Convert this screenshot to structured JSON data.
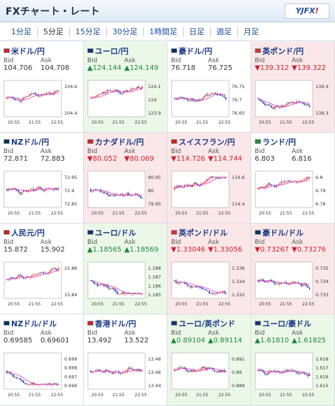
{
  "header": {
    "title": "FXチャート・レート",
    "logo_text": "YJFX!"
  },
  "tabs": [
    {
      "label": "1分足"
    },
    {
      "label": "5分足",
      "active": true
    },
    {
      "label": "15分足"
    },
    {
      "label": "30分足"
    },
    {
      "label": "1時間足"
    },
    {
      "label": "日足"
    },
    {
      "label": "週足"
    },
    {
      "label": "月足"
    }
  ],
  "labels": {
    "bid": "Bid",
    "ask": "Ask"
  },
  "colors": {
    "up": "#1f8a3a",
    "down": "#d11f2b",
    "candle_up": "#e23a3a",
    "candle_down": "#2a3fa8",
    "ma": "#d43fcf"
  },
  "pairs": [
    {
      "name": "米ドル/円",
      "state": "neutral",
      "bid": "104.706",
      "ask": "104.708",
      "yticks": [
        "104.6",
        "104.4"
      ],
      "xticks": [
        "20:55",
        "21:55",
        "22:55"
      ],
      "trend": "up"
    },
    {
      "name": "ユーロ/円",
      "state": "up",
      "bid": "▲124.144",
      "ask": "▲124.149",
      "yticks": [
        "124.1",
        "124",
        "123.9"
      ],
      "xticks": [
        "20:55",
        "21:55",
        "22:55"
      ],
      "trend": "up"
    },
    {
      "name": "豪ドル/円",
      "state": "neutral",
      "bid": "76.718",
      "ask": "76.725",
      "yticks": [
        "76.75",
        "76.7",
        "76.65"
      ],
      "xticks": [
        "20:55",
        "21:55",
        "22:55"
      ],
      "trend": "flat"
    },
    {
      "name": "英ポンド/円",
      "state": "down",
      "bid": "▼139.312",
      "ask": "▼139.322",
      "yticks": [
        "139.4",
        "139.3"
      ],
      "xticks": [
        "20:55",
        "21:55",
        "22:55"
      ],
      "trend": "flat"
    },
    {
      "name": "NZドル/円",
      "state": "neutral",
      "bid": "72.871",
      "ask": "72.883",
      "yticks": [
        "72.95",
        "72.9",
        "72.85"
      ],
      "xticks": [
        "20:55",
        "21:55",
        "22:55"
      ],
      "trend": "flat"
    },
    {
      "name": "カナダドル/円",
      "state": "down",
      "bid": "▼80.052",
      "ask": "▼80.069",
      "yticks": [
        "80.05",
        "80",
        "79.95"
      ],
      "xticks": [
        "20:55",
        "21:55",
        "22:55"
      ],
      "trend": "down"
    },
    {
      "name": "スイスフラン/円",
      "state": "down",
      "bid": "▼114.726",
      "ask": "▼114.744",
      "yticks": [
        "114.6",
        "114.4"
      ],
      "xticks": [
        "20:55",
        "21:55",
        "22:55"
      ],
      "trend": "up"
    },
    {
      "name": "ランド/円",
      "state": "neutral",
      "bid": "6.803",
      "ask": "6.816",
      "yticks": [
        "6.8",
        "6.79",
        "6.78"
      ],
      "xticks": [
        "20:55",
        "21:55",
        "22:55"
      ],
      "trend": "up"
    },
    {
      "name": "人民元/円",
      "state": "neutral",
      "bid": "15.872",
      "ask": "15.902",
      "yticks": [
        "15.86",
        "15.84"
      ],
      "xticks": [
        "20:55",
        "21:55",
        "22:55"
      ],
      "trend": "up"
    },
    {
      "name": "ユーロ/ドル",
      "state": "up",
      "bid": "▲1.18565",
      "ask": "▲1.18569",
      "yticks": [
        "1.188",
        "1.187",
        "1.186",
        "1.185"
      ],
      "xticks": [
        "20:55",
        "21:55",
        "22:55"
      ],
      "trend": "down"
    },
    {
      "name": "英ポンド/ドル",
      "state": "down",
      "bid": "▼1.33046",
      "ask": "▼1.33056",
      "yticks": [
        "1.336",
        "1.334",
        "1.332"
      ],
      "xticks": [
        "20:55",
        "21:55",
        "22:55"
      ],
      "trend": "down"
    },
    {
      "name": "豪ドル/ドル",
      "state": "down",
      "bid": "▼0.73267",
      "ask": "▼0.73276",
      "yticks": [
        "0.735",
        "0.734",
        "0.733"
      ],
      "xticks": [
        "20:55",
        "21:55",
        "22:55"
      ],
      "trend": "down"
    },
    {
      "name": "NZドル/ドル",
      "state": "neutral",
      "bid": "0.69585",
      "ask": "0.69601",
      "yticks": [
        "0.699",
        "0.698",
        "0.697",
        "0.696"
      ],
      "xticks": [
        "20:55",
        "21:55",
        "22:55"
      ],
      "trend": "down"
    },
    {
      "name": "香港ドル/円",
      "state": "neutral",
      "bid": "13.492",
      "ask": "13.522",
      "yticks": [
        "13.48",
        "13.46",
        "13.44"
      ],
      "xticks": [
        "20:55",
        "21:55",
        "22:55"
      ],
      "trend": "up"
    },
    {
      "name": "ユーロ/英ポンド",
      "state": "up",
      "bid": "▲0.89104",
      "ask": "▲0.89114",
      "yticks": [
        "0.891",
        "0.89",
        "0.889"
      ],
      "xticks": [
        "20:55",
        "21:55",
        "22:55"
      ],
      "trend": "flat"
    },
    {
      "name": "ユーロ/豪ドル",
      "state": "up",
      "bid": "▲1.61810",
      "ask": "▲1.61825",
      "yticks": [
        "1.618",
        "1.617",
        "1.616",
        "1.615"
      ],
      "xticks": [
        "20:55",
        "21:55",
        "22:55"
      ],
      "trend": "up"
    }
  ]
}
